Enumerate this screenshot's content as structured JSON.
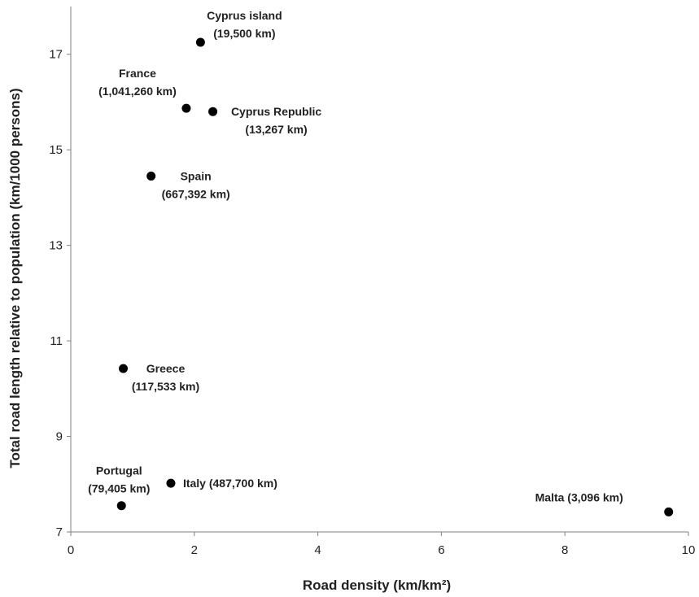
{
  "chart_data": {
    "type": "scatter",
    "title": "",
    "xlabel": "Road density (km/km²)",
    "ylabel": "Total road length relative to population (km/1000 persons)",
    "xlim": [
      0,
      10
    ],
    "ylim": [
      7,
      18
    ],
    "x_ticks": [
      0,
      2,
      4,
      6,
      8,
      10
    ],
    "y_ticks": [
      7,
      9,
      11,
      13,
      15,
      17
    ],
    "grid": false,
    "legend": "none",
    "marker_color": "#000000",
    "points": [
      {
        "x": 2.1,
        "y": 17.25,
        "label": [
          "Cyprus island",
          "(19,500 km)"
        ]
      },
      {
        "x": 1.87,
        "y": 15.87,
        "label": [
          "France",
          "(1,041,260 km)"
        ]
      },
      {
        "x": 2.3,
        "y": 15.8,
        "label": [
          "Cyprus Republic",
          "(13,267 km)"
        ]
      },
      {
        "x": 1.3,
        "y": 14.45,
        "label": [
          "Spain",
          "(667,392 km)"
        ]
      },
      {
        "x": 0.85,
        "y": 10.42,
        "label": [
          "Greece",
          "(117,533 km)"
        ]
      },
      {
        "x": 1.62,
        "y": 8.02,
        "label": [
          "Italy (487,700 km)"
        ]
      },
      {
        "x": 0.82,
        "y": 7.55,
        "label": [
          "Portugal",
          "(79,405 km)"
        ]
      },
      {
        "x": 9.68,
        "y": 7.42,
        "label": [
          "Malta (3,096 km)"
        ]
      }
    ]
  }
}
